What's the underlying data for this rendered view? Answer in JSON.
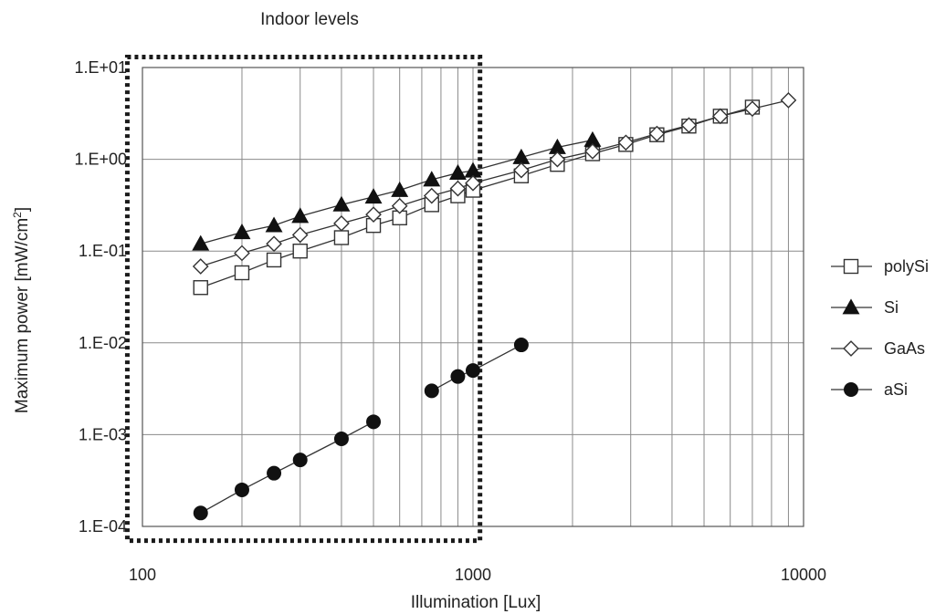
{
  "chart_data": {
    "type": "line",
    "annotation": "Indoor levels",
    "xlabel": "Illumination [Lux]",
    "ylabel_main": "Maximum power [mW/cm",
    "ylabel_sup": "2",
    "ylabel_end": "]",
    "x_scale": "log",
    "y_scale": "log",
    "xlim": [
      100,
      10000
    ],
    "ylim": [
      0.0001,
      10
    ],
    "x_ticks": [
      {
        "value": 100,
        "label": "100"
      },
      {
        "value": 1000,
        "label": "1000"
      },
      {
        "value": 10000,
        "label": "10000"
      }
    ],
    "y_ticks": [
      {
        "value": 10,
        "label": "1.E+01"
      },
      {
        "value": 1,
        "label": "1.E+00"
      },
      {
        "value": 0.1,
        "label": "1.E-01"
      },
      {
        "value": 0.01,
        "label": "1.E-02"
      },
      {
        "value": 0.001,
        "label": "1.E-03"
      },
      {
        "value": 0.0001,
        "label": "1.E-04"
      }
    ],
    "grid": true,
    "legend_position": "right",
    "indoor_region": {
      "x": [
        90,
        1050
      ],
      "y": [
        7e-05,
        13
      ]
    },
    "series": [
      {
        "name": "polySi",
        "marker": "square",
        "x": [
          150,
          200,
          250,
          300,
          400,
          500,
          600,
          750,
          900,
          1000,
          1400,
          1800,
          2300,
          2900,
          3600,
          4500,
          5600,
          7000
        ],
        "y": [
          0.04,
          0.058,
          0.08,
          0.1,
          0.14,
          0.19,
          0.23,
          0.32,
          0.4,
          0.46,
          0.66,
          0.88,
          1.15,
          1.45,
          1.85,
          2.3,
          2.95,
          3.7
        ]
      },
      {
        "name": "Si",
        "marker": "triangle",
        "x": [
          150,
          200,
          250,
          300,
          400,
          500,
          600,
          750,
          900,
          1000,
          1400,
          1800,
          2300
        ],
        "y": [
          0.12,
          0.16,
          0.19,
          0.24,
          0.32,
          0.39,
          0.46,
          0.6,
          0.71,
          0.75,
          1.05,
          1.35,
          1.62
        ]
      },
      {
        "name": "GaAs",
        "marker": "diamond",
        "x": [
          150,
          200,
          250,
          300,
          400,
          500,
          600,
          750,
          900,
          1000,
          1400,
          1800,
          2300,
          2900,
          3600,
          4500,
          5600,
          7000,
          9000
        ],
        "y": [
          0.068,
          0.095,
          0.12,
          0.15,
          0.2,
          0.25,
          0.31,
          0.4,
          0.48,
          0.55,
          0.76,
          1.0,
          1.22,
          1.52,
          1.9,
          2.35,
          2.95,
          3.55,
          4.4
        ]
      },
      {
        "name": "aSi",
        "marker": "circle",
        "segments": [
          {
            "x": [
              150,
              200,
              250,
              300,
              400,
              500
            ],
            "y": [
              0.00014,
              0.00025,
              0.00038,
              0.00053,
              0.0009,
              0.00138
            ]
          },
          {
            "x": [
              750,
              900,
              1000,
              1400
            ],
            "y": [
              0.003,
              0.0043,
              0.005,
              0.0095
            ]
          }
        ]
      }
    ]
  }
}
